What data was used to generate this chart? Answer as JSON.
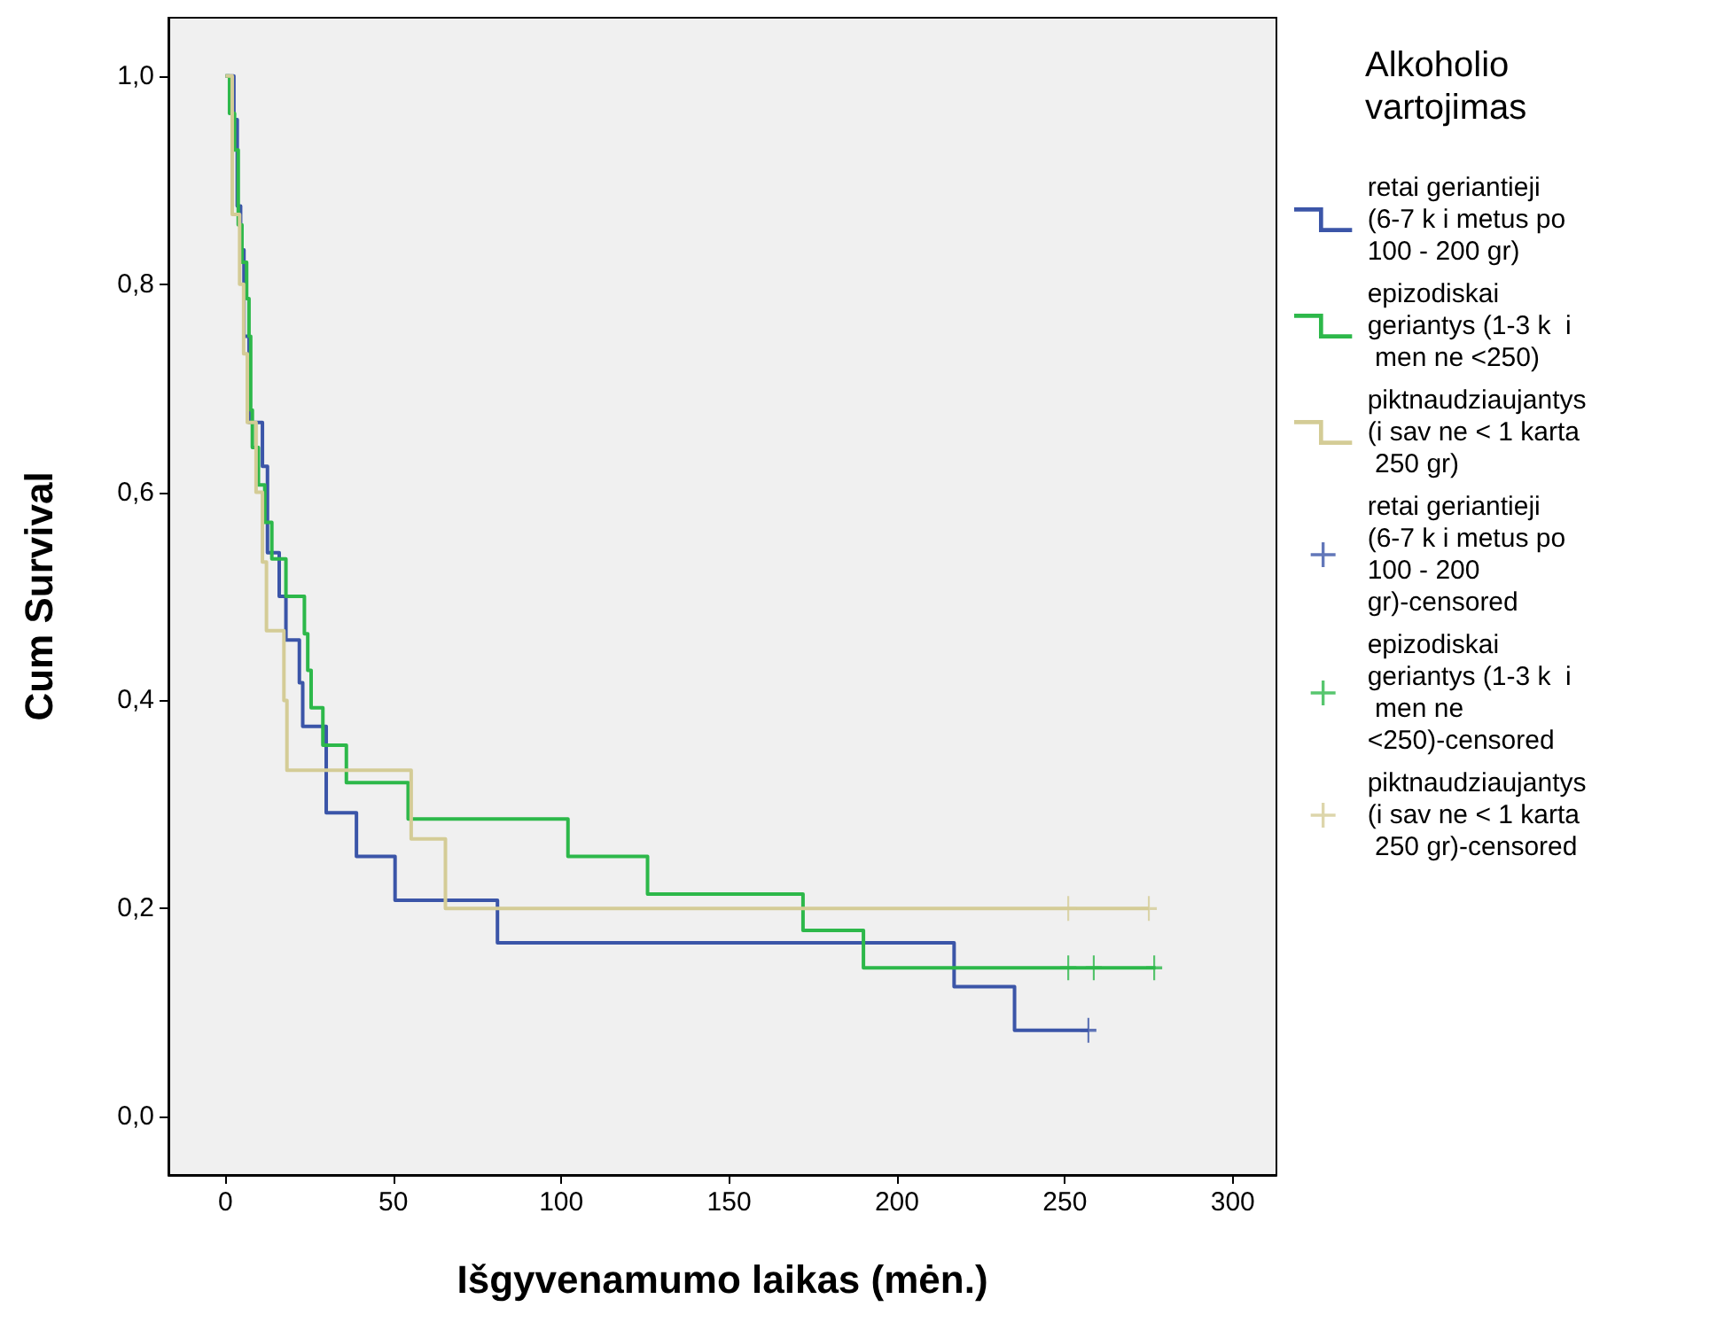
{
  "chart_data": {
    "type": "step",
    "xlabel": "Išgyvenamumo laikas (mėn.)",
    "ylabel": "Cum Survival",
    "legend_title": "Alkoholio vartojimas",
    "legend": "right",
    "grid": false,
    "xlim": [
      -17,
      313
    ],
    "xticks": [
      0,
      50,
      100,
      150,
      200,
      250,
      300
    ],
    "ylim": [
      -0.056,
      1.056
    ],
    "yticks": [
      {
        "value": 0,
        "label": "0,0"
      },
      {
        "value": 0.2,
        "label": "0,2"
      },
      {
        "value": 0.4,
        "label": "0,4"
      },
      {
        "value": 0.6,
        "label": "0,6"
      },
      {
        "value": 0.8,
        "label": "0,8"
      },
      {
        "value": 1,
        "label": "1,0"
      }
    ],
    "series": [
      {
        "name": "retai geriantieji (6-7 k i metus po 100 - 200 gr)",
        "color": "#3b55a8",
        "x": [
          0,
          2.5,
          3.5,
          4.5,
          5.5,
          7,
          11,
          12.5,
          16,
          18,
          22,
          23,
          30,
          39,
          50.5,
          81,
          217,
          235,
          257
        ],
        "values": [
          1,
          0.958,
          0.875,
          0.833,
          0.75,
          0.667,
          0.625,
          0.542,
          0.5,
          0.458,
          0.417,
          0.375,
          0.292,
          0.25,
          0.208,
          0.167,
          0.125,
          0.083,
          0.083
        ]
      },
      {
        "name": "epizodiskai geriantys (1-3 k  i men ne <250)",
        "color": "#2db84a",
        "x": [
          0,
          1.2,
          2.7,
          3.8,
          4.9,
          6.3,
          7,
          7.5,
          8,
          9.8,
          11.7,
          13.8,
          18,
          23.5,
          24.5,
          25.5,
          29,
          36,
          54.4,
          102,
          125.7,
          172,
          190,
          277
        ],
        "values": [
          1,
          0.964,
          0.929,
          0.857,
          0.821,
          0.786,
          0.75,
          0.679,
          0.643,
          0.607,
          0.571,
          0.536,
          0.5,
          0.464,
          0.429,
          0.393,
          0.357,
          0.321,
          0.286,
          0.25,
          0.214,
          0.179,
          0.143,
          0.143
        ]
      },
      {
        "name": "piktnaudziaujantys (i sav ne < 1 karta 250 gr)",
        "color": "#d4cc96",
        "x": [
          0,
          2,
          4.2,
          5.4,
          6.5,
          9.1,
          11,
          12.2,
          17.4,
          18.3,
          55.3,
          65.5,
          275
        ],
        "values": [
          1,
          0.867,
          0.8,
          0.733,
          0.667,
          0.6,
          0.533,
          0.467,
          0.4,
          0.333,
          0.267,
          0.2,
          0.2
        ]
      },
      {
        "name": "retai geriantieji (6-7 k i metus po 100 - 200 gr)-censored",
        "type": "scatter",
        "marker": "cross",
        "color": "#3b55a8",
        "x": [
          257
        ],
        "values": [
          0.083
        ]
      },
      {
        "name": "epizodiskai geriantys (1-3 k  i men ne <250)-censored",
        "type": "scatter",
        "marker": "cross",
        "color": "#2db84a",
        "x": [
          251,
          258.6,
          276.6
        ],
        "values": [
          0.143,
          0.143,
          0.143
        ]
      },
      {
        "name": "piktnaudziaujantys (i sav ne < 1 karta 250 gr)-censored",
        "type": "scatter",
        "marker": "cross",
        "color": "#d4cc96",
        "x": [
          251,
          275
        ],
        "values": [
          0.2,
          0.2
        ]
      }
    ]
  }
}
